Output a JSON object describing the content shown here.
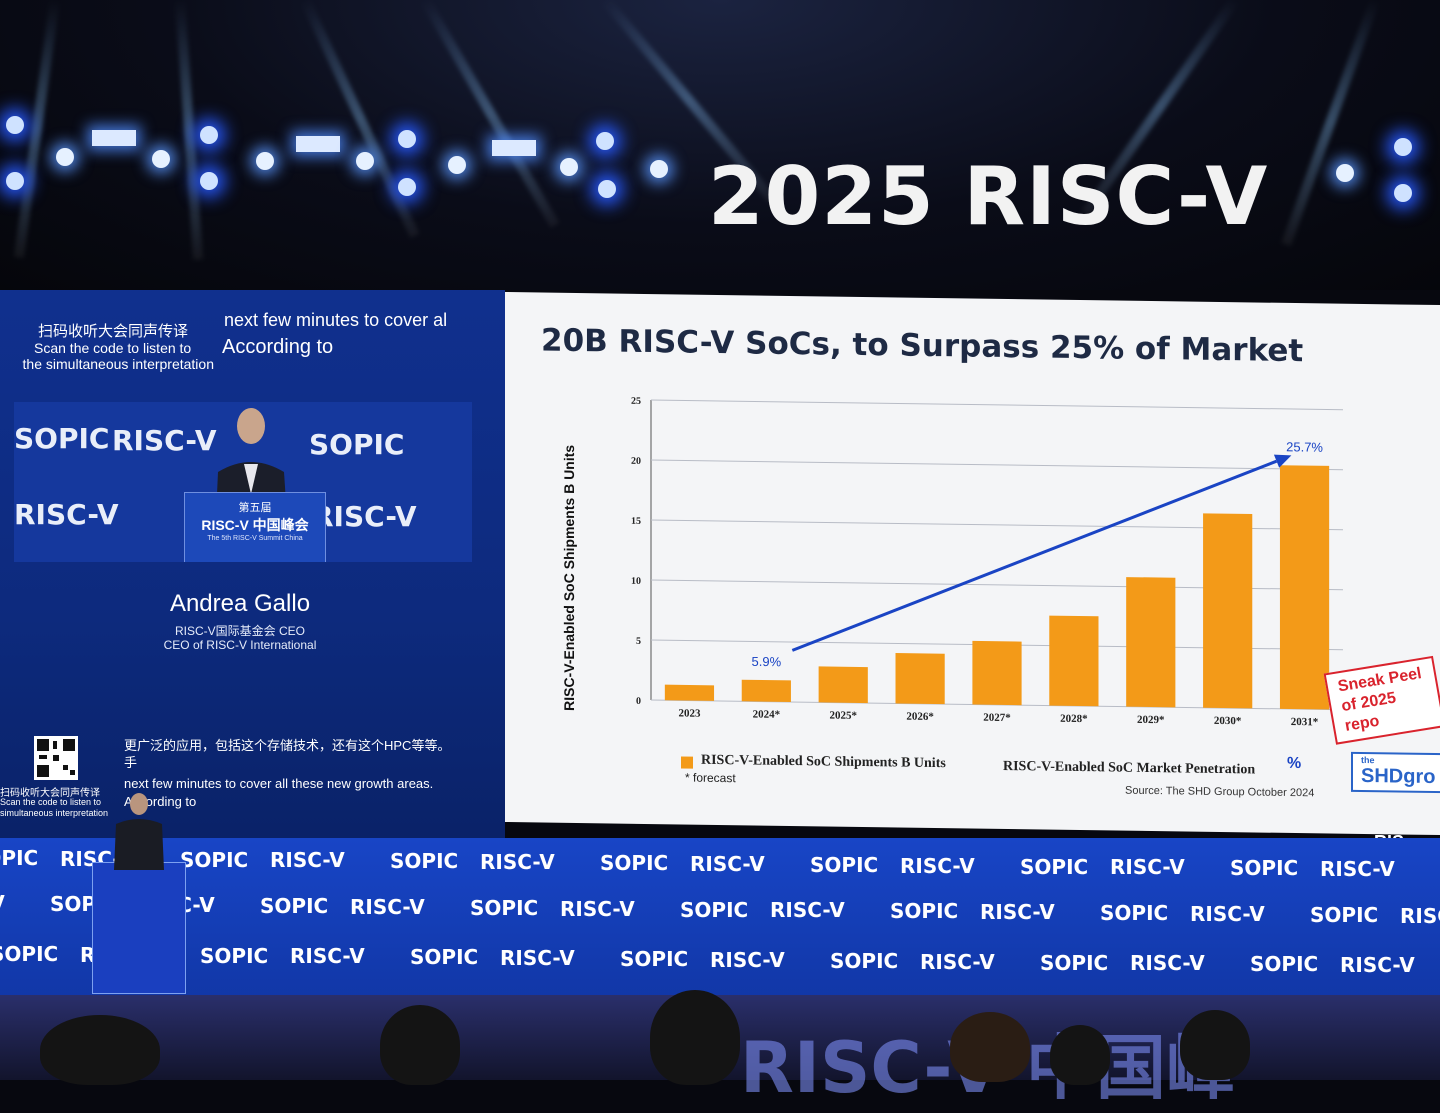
{
  "event": {
    "title": "2025 RISC-V",
    "floor_text": "RISC-V 中国峰"
  },
  "left_panel": {
    "qr_hint_cn": "扫码收听大会同声传译",
    "qr_hint_en_1": "Scan the code to listen to",
    "qr_hint_en_2": "the simultaneous interpretation",
    "top_caption_1": "next few minutes to cover al",
    "top_caption_2": "According to",
    "speaker_name": "Andrea Gallo",
    "speaker_role_cn": "RISC-V国际基金会 CEO",
    "speaker_role_en": "CEO of RISC-V International",
    "caption_cn": "更广泛的应用，包括这个存储技术，还有这个HPC等等。",
    "caption_cn_2": "手",
    "caption_en_1": "next few minutes to cover all these new growth areas.",
    "caption_en_2": "According to",
    "small_qr_cn": "扫码收听大会同声传译",
    "small_qr_en_1": "Scan the code to listen to",
    "small_qr_en_2": "simultaneous interpretation",
    "podium_cn": "第五届",
    "podium_logo": "RISC-V 中国峰会",
    "podium_sub": "The 5th RISC-V Summit China"
  },
  "logos": {
    "sopic": "SOPIC",
    "riscv": "RISC-V"
  },
  "slide": {
    "title": "20B RISC-V SoCs, to Surpass 25% of Market",
    "legend_shipments": "RISC-V-Enabled SoC Shipments B Units",
    "legend_penetration": "RISC-V-Enabled SoC Market Penetration",
    "forecast_note": "* forecast",
    "source": "Source: The SHD Group October 2024",
    "sneak_peek_1": "Sneak Peel",
    "sneak_peek_2": "of 2025 repo",
    "brand": "SHDgro",
    "brand_small": "the",
    "corner_logo": "RIS"
  },
  "chart_data": {
    "type": "bar",
    "title": "20B RISC-V SoCs, to Surpass 25% of Market",
    "ylabel": "RISC-V-Enabled SoC Shipments B Units",
    "xlabel": "",
    "ylim": [
      0,
      25
    ],
    "yticks": [
      0,
      5,
      10,
      15,
      20,
      25
    ],
    "categories": [
      "2023",
      "2024*",
      "2025*",
      "2026*",
      "2027*",
      "2028*",
      "2029*",
      "2030*",
      "2031*"
    ],
    "series": [
      {
        "name": "RISC-V-Enabled SoC Shipments B Units",
        "values": [
          1.3,
          1.8,
          3.0,
          4.2,
          5.3,
          7.5,
          10.8,
          16.2,
          20.3
        ],
        "color": "#f39a18"
      }
    ],
    "annotations": [
      {
        "label": "5.9%",
        "category": "2024*"
      },
      {
        "label": "25.7%",
        "category": "2031*"
      }
    ],
    "penetration_axis_unit": "%",
    "grid": true
  }
}
